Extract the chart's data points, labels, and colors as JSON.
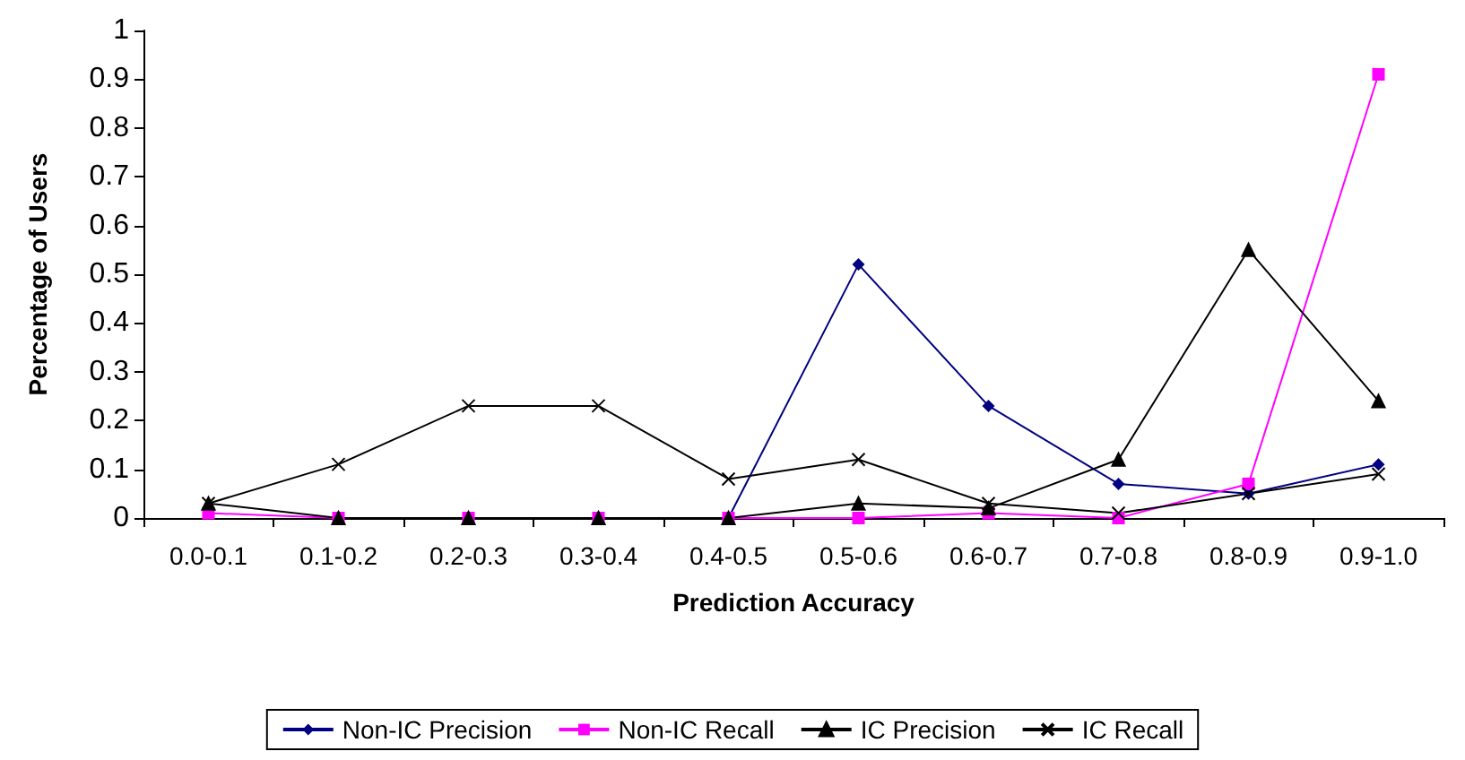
{
  "chart_data": {
    "type": "line",
    "xlabel": "Prediction Accuracy",
    "ylabel": "Percentage of Users",
    "categories": [
      "0.0-0.1",
      "0.1-0.2",
      "0.2-0.3",
      "0.3-0.4",
      "0.4-0.5",
      "0.5-0.6",
      "0.6-0.7",
      "0.7-0.8",
      "0.8-0.9",
      "0.9-1.0"
    ],
    "series": [
      {
        "name": "Non-IC Precision",
        "color": "#000080",
        "marker": "diamond",
        "values": [
          null,
          null,
          null,
          null,
          0,
          0.52,
          0.23,
          0.07,
          0.05,
          0.11
        ]
      },
      {
        "name": "Non-IC Recall",
        "color": "#ff00ff",
        "marker": "square",
        "values": [
          0.01,
          0,
          0,
          0,
          0,
          0,
          0.01,
          0,
          0.07,
          0.91
        ]
      },
      {
        "name": "IC Precision",
        "color": "#000000",
        "marker": "triangle",
        "values": [
          0.03,
          0,
          0,
          0,
          0,
          0.03,
          0.02,
          0.12,
          0.55,
          0.24
        ]
      },
      {
        "name": "IC Recall",
        "color": "#000000",
        "marker": "cross",
        "values": [
          0.03,
          0.11,
          0.23,
          0.23,
          0.08,
          0.12,
          0.03,
          0.01,
          0.05,
          0.09
        ]
      }
    ],
    "ylim": [
      0,
      1
    ],
    "yticks": [
      0,
      0.1,
      0.2,
      0.3,
      0.4,
      0.5,
      0.6,
      0.7,
      0.8,
      0.9,
      1
    ],
    "grid": false,
    "legend": "bottom",
    "line_style": "solid"
  }
}
